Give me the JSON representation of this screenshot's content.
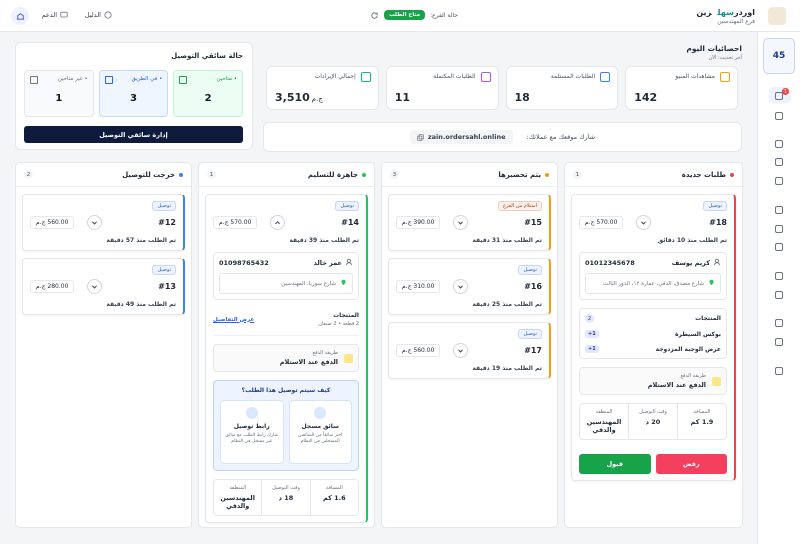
{
  "header": {
    "brand_a": "اوردر",
    "brand_b": "سهل",
    "brand_name": "زين",
    "branch": "فرع المهندسين",
    "status_label": "حالة الفرع:",
    "status": "متاح الطلب",
    "guide": "الدليل",
    "support": "الدعم"
  },
  "sidebar": {
    "count": 45,
    "badge": 1
  },
  "stats": {
    "title": "احصائيات اليوم",
    "subtitle": "آخر تحديث: الآن",
    "cards": [
      {
        "label": "مشاهدات المنيو",
        "value": 142,
        "color": "#f59e0b"
      },
      {
        "label": "الطلبات المستلمة",
        "value": 18,
        "color": "#3b82f6"
      },
      {
        "label": "الطلبات المكتملة",
        "value": 11,
        "color": "#a855f7"
      },
      {
        "label": "إجمالي الإيرادات",
        "value": "3,510",
        "unit": "ج.م",
        "color": "#10b981"
      }
    ]
  },
  "share": {
    "label": "شارك موقعك مع عملائك:",
    "url": "zain.ordersahl.online"
  },
  "drivers": {
    "title": "حالة سائقي التوصيل",
    "groups": [
      {
        "label": "• متاحين",
        "value": 2,
        "bg": "#ecfdf3",
        "border": "#bbf7d0",
        "color": "#16a34a"
      },
      {
        "label": "• في الطريق",
        "value": 3,
        "bg": "#eff6ff",
        "border": "#bfdbfe",
        "color": "#2563eb"
      },
      {
        "label": "• غير متاحين",
        "value": 1,
        "bg": "#f9fafb",
        "border": "#e5e7eb",
        "color": "#6b7280"
      }
    ],
    "button": "إدارة سائقي التوصيل"
  },
  "columns": [
    {
      "title": "طلبات جديدة",
      "count": 1,
      "color": "#ef4444",
      "orders": [
        {
          "type": "توصيل",
          "type_color": "#2563eb",
          "id": "#18",
          "price": "570.00 ج.م",
          "time": "تم الطلب منذ 10 دقائق",
          "customer": "كريم يوسف",
          "phone": "01012345678",
          "address": "شارع مصدق، الدقي، عمارة ١٢، الدور الثالث",
          "products_label": "المنتجات",
          "products_count": 2,
          "items": [
            {
              "name": "بوكس السيطرة",
              "qty": "+1"
            },
            {
              "name": "عرض الوجبة المزدوجة",
              "qty": "+1"
            }
          ],
          "payment_label": "طريقة الدفع",
          "payment": "الدفع عند الاستلام",
          "distance_label": "المسافة",
          "distance": "1.9 كم",
          "eta_label": "وقت التوصيل",
          "eta": "20 د",
          "area_label": "المنطقة",
          "area": "المهندسين والدقي",
          "reject": "رفض",
          "accept": "قبول"
        }
      ]
    },
    {
      "title": "يتم تحضيرها",
      "count": 3,
      "color": "#f59e0b",
      "orders": [
        {
          "type": "استلام من الفرع",
          "type_color": "#c2410c",
          "id": "#15",
          "price": "390.00 ج.م",
          "time": "تم الطلب منذ 31 دقيقة"
        },
        {
          "type": "توصيل",
          "type_color": "#2563eb",
          "id": "#16",
          "price": "310.00 ج.م",
          "time": "تم الطلب منذ 25 دقيقة"
        },
        {
          "type": "توصيل",
          "type_color": "#2563eb",
          "id": "#17",
          "price": "560.00 ج.م",
          "time": "تم الطلب منذ 19 دقيقة"
        }
      ]
    },
    {
      "title": "جاهزة للتسليم",
      "count": 1,
      "color": "#22c55e",
      "orders": [
        {
          "type": "توصيل",
          "type_color": "#2563eb",
          "id": "#14",
          "price": "570.00 ج.م",
          "time": "تم الطلب منذ 39 دقيقة",
          "customer": "عمر خالد",
          "phone": "01098765432",
          "address": "شارع سوريا، المهندسين",
          "products_label": "المنتجات",
          "products_summary": "2 قطعة • 2 صنفان",
          "details": "عرض التفاصيل",
          "payment_label": "طريقة الدفع",
          "payment": "الدفع عند الاستلام",
          "question": "كيف سيتم توصيل هذا الطلب؟",
          "options": [
            {
              "title": "سائق مسجل",
              "desc": "اختر سائقاً من السائقين المسجلين في النظام"
            },
            {
              "title": "رابط توصيل",
              "desc": "شارك رابط الطلب مع سائق غير مسجل في النظام"
            }
          ],
          "distance_label": "المسافة",
          "distance": "1.6 كم",
          "eta_label": "وقت التوصيل",
          "eta": "18 د",
          "area_label": "المنطقة",
          "area": "المهندسين والدقي"
        }
      ]
    },
    {
      "title": "خرجت للتوصيل",
      "count": 2,
      "color": "#3b82f6",
      "orders": [
        {
          "type": "توصيل",
          "type_color": "#2563eb",
          "id": "#12",
          "price": "560.00 ج.م",
          "time": "تم الطلب منذ 57 دقيقة"
        },
        {
          "type": "توصيل",
          "type_color": "#2563eb",
          "id": "#13",
          "price": "280.00 ج.م",
          "time": "تم الطلب منذ 49 دقيقة"
        }
      ]
    }
  ]
}
